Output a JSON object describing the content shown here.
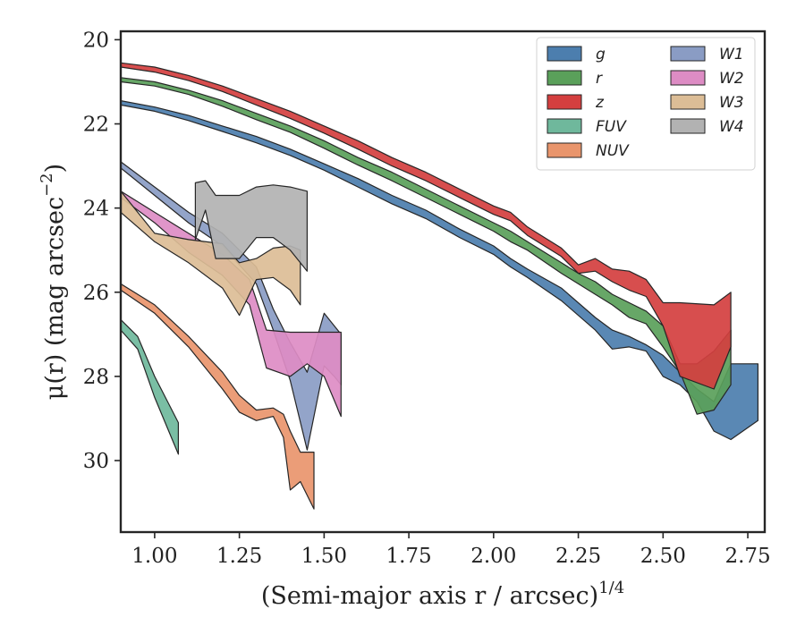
{
  "chart_data": {
    "type": "area",
    "title": "",
    "xlabel": "(Semi-major axis r / arcsec)",
    "xlabel_italic_part": "r",
    "xlabel_sup": "1/4",
    "ylabel": "μ(r) (mag arcsec",
    "ylabel_sup": "−2",
    "xlim": [
      0.9,
      2.8
    ],
    "ylim": [
      31.7,
      19.8
    ],
    "y_inverted": true,
    "x_ticks": [
      1.0,
      1.25,
      1.5,
      1.75,
      2.0,
      2.25,
      2.5,
      2.75
    ],
    "x_tick_labels": [
      "1.00",
      "1.25",
      "1.50",
      "1.75",
      "2.00",
      "2.25",
      "2.50",
      "2.75"
    ],
    "y_ticks": [
      20,
      22,
      24,
      26,
      28,
      30
    ],
    "y_tick_labels": [
      "20",
      "22",
      "24",
      "26",
      "28",
      "30"
    ],
    "grid": false,
    "legend_placement": "top-right",
    "legend_columns": 2,
    "series": [
      {
        "name": "g",
        "color": "#4c7eae",
        "x": [
          0.9,
          1.0,
          1.1,
          1.2,
          1.3,
          1.4,
          1.5,
          1.6,
          1.7,
          1.8,
          1.9,
          2.0,
          2.05,
          2.1,
          2.2,
          2.3,
          2.35,
          2.4,
          2.45,
          2.5,
          2.55,
          2.6,
          2.65,
          2.7,
          2.78
        ],
        "lower": [
          21.45,
          21.6,
          21.8,
          22.05,
          22.3,
          22.6,
          22.95,
          23.3,
          23.7,
          24.05,
          24.5,
          24.9,
          25.2,
          25.45,
          25.9,
          26.6,
          26.9,
          27.05,
          27.25,
          27.5,
          27.9,
          28.3,
          28.6,
          27.7,
          27.7
        ],
        "upper": [
          21.55,
          21.7,
          21.92,
          22.18,
          22.45,
          22.75,
          23.1,
          23.5,
          23.9,
          24.25,
          24.7,
          25.1,
          25.4,
          25.65,
          26.2,
          26.9,
          27.35,
          27.3,
          27.4,
          28.0,
          28.2,
          28.6,
          29.3,
          29.5,
          29.05
        ]
      },
      {
        "name": "r",
        "color": "#5aa05a",
        "x": [
          0.9,
          1.0,
          1.1,
          1.2,
          1.3,
          1.4,
          1.5,
          1.6,
          1.7,
          1.8,
          1.9,
          2.0,
          2.05,
          2.1,
          2.2,
          2.25,
          2.3,
          2.35,
          2.4,
          2.45,
          2.5,
          2.55,
          2.6,
          2.65,
          2.7
        ],
        "lower": [
          20.9,
          21.0,
          21.2,
          21.45,
          21.75,
          22.05,
          22.4,
          22.8,
          23.15,
          23.55,
          23.95,
          24.35,
          24.55,
          24.8,
          25.3,
          25.55,
          25.75,
          26.05,
          26.25,
          26.45,
          26.8,
          27.7,
          27.7,
          27.4,
          26.9
        ],
        "upper": [
          21.0,
          21.1,
          21.3,
          21.58,
          21.9,
          22.2,
          22.58,
          22.98,
          23.35,
          23.75,
          24.15,
          24.55,
          24.8,
          25.0,
          25.55,
          25.8,
          26.05,
          26.3,
          26.6,
          26.75,
          27.3,
          27.9,
          28.9,
          28.8,
          28.2
        ]
      },
      {
        "name": "z",
        "color": "#d43f3f",
        "x": [
          0.9,
          1.0,
          1.1,
          1.2,
          1.3,
          1.4,
          1.5,
          1.6,
          1.7,
          1.8,
          1.9,
          2.0,
          2.05,
          2.1,
          2.2,
          2.25,
          2.3,
          2.35,
          2.4,
          2.45,
          2.5,
          2.55,
          2.65,
          2.7
        ],
        "lower": [
          20.55,
          20.65,
          20.85,
          21.1,
          21.4,
          21.7,
          22.05,
          22.4,
          22.8,
          23.15,
          23.55,
          23.95,
          24.1,
          24.45,
          24.95,
          25.35,
          25.2,
          25.45,
          25.5,
          25.7,
          26.25,
          26.25,
          26.3,
          26.0
        ],
        "upper": [
          20.65,
          20.77,
          20.97,
          21.23,
          21.55,
          21.87,
          22.22,
          22.6,
          23.0,
          23.35,
          23.75,
          24.15,
          24.3,
          24.65,
          25.15,
          25.55,
          25.5,
          25.75,
          25.95,
          26.1,
          26.8,
          28.0,
          28.3,
          27.3
        ]
      },
      {
        "name": "FUV",
        "color": "#6fb89c",
        "x": [
          0.9,
          0.95,
          1.0,
          1.07
        ],
        "lower": [
          26.65,
          27.05,
          28.0,
          29.1
        ],
        "upper": [
          26.9,
          27.35,
          28.5,
          29.85
        ]
      },
      {
        "name": "NUV",
        "color": "#e9956c",
        "x": [
          0.9,
          1.0,
          1.1,
          1.2,
          1.25,
          1.3,
          1.35,
          1.38,
          1.4,
          1.43,
          1.47
        ],
        "lower": [
          25.8,
          26.3,
          27.05,
          27.9,
          28.45,
          28.8,
          28.75,
          28.9,
          29.3,
          29.8,
          29.8
        ],
        "upper": [
          25.95,
          26.5,
          27.3,
          28.3,
          28.85,
          29.05,
          28.95,
          29.45,
          30.7,
          30.5,
          31.15
        ]
      },
      {
        "name": "W1",
        "color": "#8a9cc4",
        "x": [
          0.9,
          1.0,
          1.1,
          1.2,
          1.3,
          1.35,
          1.4,
          1.45,
          1.5,
          1.53,
          1.55
        ],
        "lower": [
          22.9,
          23.5,
          24.1,
          24.6,
          25.4,
          26.4,
          27.2,
          27.9,
          26.5,
          26.8,
          27.0
        ],
        "upper": [
          23.05,
          23.7,
          24.35,
          24.9,
          25.8,
          26.9,
          28.1,
          29.75,
          27.75,
          28.0,
          28.2
        ]
      },
      {
        "name": "W2",
        "color": "#dd8cc4",
        "x": [
          0.9,
          1.0,
          1.1,
          1.2,
          1.28,
          1.33,
          1.4,
          1.45,
          1.5,
          1.55
        ],
        "lower": [
          23.6,
          24.1,
          24.6,
          25.1,
          25.7,
          26.9,
          26.95,
          26.95,
          26.95,
          26.95
        ],
        "upper": [
          23.75,
          24.35,
          25.05,
          25.6,
          26.3,
          27.8,
          28.0,
          27.7,
          28.0,
          28.95
        ]
      },
      {
        "name": "W3",
        "color": "#dcbd96",
        "x": [
          0.9,
          1.0,
          1.1,
          1.2,
          1.25,
          1.3,
          1.35,
          1.4,
          1.43
        ],
        "lower": [
          23.6,
          24.6,
          24.75,
          24.85,
          25.3,
          25.2,
          24.95,
          24.9,
          25.0
        ],
        "upper": [
          24.1,
          24.8,
          25.3,
          25.9,
          26.55,
          25.7,
          25.65,
          25.95,
          26.3
        ]
      },
      {
        "name": "W4",
        "color": "#b2b2b2",
        "x": [
          1.12,
          1.15,
          1.18,
          1.25,
          1.3,
          1.35,
          1.4,
          1.45
        ],
        "lower": [
          23.4,
          23.35,
          23.7,
          23.7,
          23.5,
          23.45,
          23.5,
          23.6
        ],
        "upper": [
          24.75,
          24.05,
          25.2,
          25.2,
          24.7,
          24.7,
          25.0,
          25.5
        ]
      }
    ]
  }
}
